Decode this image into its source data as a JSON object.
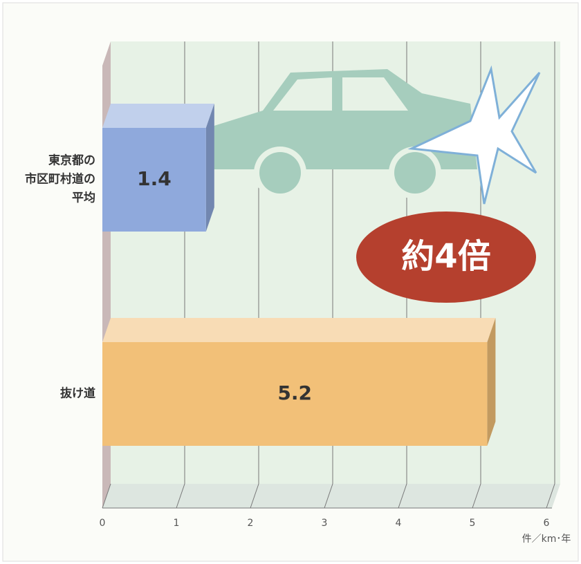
{
  "chart_data": {
    "type": "bar",
    "orientation": "horizontal",
    "categories": [
      "東京都の\n市区町村道の\n平均",
      "抜け道"
    ],
    "values": [
      1.4,
      5.2
    ],
    "colors": [
      "#8fa9dc",
      "#f2c078"
    ],
    "xlim": [
      0,
      6
    ],
    "xticks": [
      0,
      1,
      2,
      3,
      4,
      5,
      6
    ],
    "x_label": "件／km･年",
    "annotation": "約4倍",
    "grid": true
  }
}
